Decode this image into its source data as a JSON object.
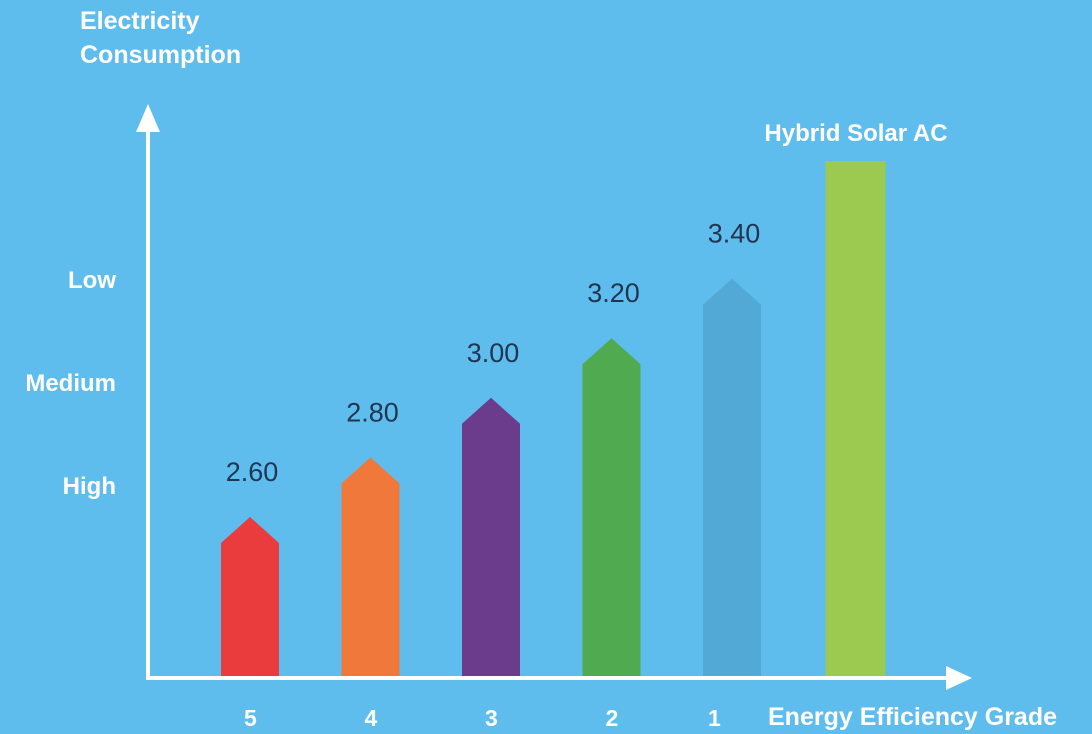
{
  "chart_data": {
    "type": "bar",
    "ylabel": "Electricity\nConsumption",
    "xlabel": "Energy Efficiency Grade",
    "y_levels": [
      "Low",
      "Medium",
      "High"
    ],
    "categories": [
      "5",
      "4",
      "3",
      "2",
      "1",
      ""
    ],
    "values": [
      2.6,
      2.8,
      3.0,
      3.2,
      3.4,
      3.9
    ],
    "value_labels": [
      "2.60",
      "2.80",
      "3.00",
      "3.20",
      "3.40",
      ""
    ],
    "annotation": "Hybrid Solar AC",
    "colors": [
      "#ea3c3c",
      "#f0783a",
      "#6b3b8c",
      "#4faa50",
      "#52a9d5",
      "#9cc94f"
    ],
    "grid": false,
    "background": "#5fbdee"
  }
}
